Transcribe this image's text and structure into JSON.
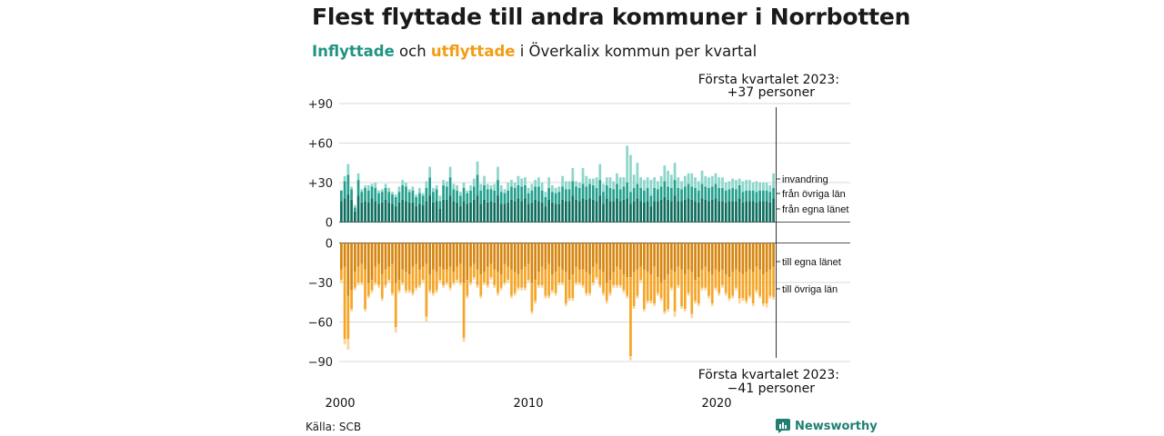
{
  "title": "Flest flyttade till andra kommuner i Norrbotten",
  "subtitle": {
    "in_word": "Inflyttade",
    "mid": " och ",
    "out_word": "utflyttade",
    "rest": " i Överkalix kommun per kvartal"
  },
  "source": "Källa: SCB",
  "brand": "Newsworthy",
  "colors": {
    "in_dark": "#0e6e5e",
    "in_mid": "#22a08d",
    "in_light": "#8ad6cb",
    "out_dark": "#d6850f",
    "out_mid": "#f5a526",
    "out_light": "#fbd59a",
    "grid": "#d9d9d9",
    "brand": "#1f7f73"
  },
  "chart_data": {
    "type": "bar",
    "stacked": true,
    "x_range": [
      "2000 Q1",
      "2023 Q1"
    ],
    "x_ticks": [
      "2000",
      "2010",
      "2020"
    ],
    "top_panel": {
      "y_ticks": [
        "+90",
        "+60",
        "+30",
        "0"
      ],
      "ylim": [
        0,
        90
      ],
      "series_labels": [
        "invandring",
        "från övriga län",
        "från egna länet"
      ],
      "series": {
        "fran_egna_lanet": [
          16,
          18,
          21,
          17,
          8,
          20,
          15,
          16,
          15,
          18,
          16,
          14,
          15,
          17,
          15,
          14,
          12,
          15,
          17,
          16,
          15,
          15,
          12,
          14,
          13,
          16,
          20,
          15,
          16,
          10,
          17,
          17,
          20,
          16,
          15,
          12,
          16,
          14,
          15,
          17,
          20,
          14,
          17,
          15,
          16,
          15,
          20,
          14,
          14,
          15,
          17,
          16,
          18,
          16,
          18,
          14,
          15,
          17,
          16,
          15,
          12,
          17,
          15,
          14,
          14,
          17,
          16,
          16,
          20,
          17,
          16,
          18,
          17,
          18,
          17,
          16,
          20,
          14,
          18,
          16,
          16,
          18,
          16,
          17,
          18,
          14,
          16,
          18,
          16,
          15,
          16,
          12,
          16,
          16,
          17,
          19,
          17,
          16,
          20,
          16,
          16,
          17,
          18,
          17,
          16,
          15,
          18,
          17,
          16,
          17,
          18,
          16,
          16,
          15,
          16,
          16,
          16,
          18,
          15,
          16,
          16,
          16,
          15,
          16,
          16,
          16,
          15,
          18
        ],
        "fran_ovriga_lan": [
          8,
          13,
          15,
          8,
          3,
          12,
          8,
          10,
          9,
          9,
          10,
          8,
          8,
          9,
          8,
          7,
          7,
          8,
          11,
          11,
          8,
          9,
          7,
          8,
          7,
          10,
          14,
          8,
          9,
          6,
          11,
          10,
          14,
          9,
          9,
          8,
          10,
          8,
          9,
          10,
          16,
          10,
          11,
          10,
          9,
          9,
          12,
          9,
          8,
          9,
          10,
          10,
          10,
          11,
          10,
          8,
          9,
          10,
          11,
          9,
          7,
          9,
          8,
          8,
          9,
          10,
          9,
          9,
          11,
          10,
          10,
          11,
          10,
          11,
          11,
          10,
          12,
          9,
          10,
          10,
          9,
          11,
          9,
          10,
          12,
          9,
          10,
          11,
          10,
          9,
          10,
          8,
          10,
          9,
          10,
          12,
          10,
          10,
          12,
          10,
          9,
          10,
          11,
          10,
          10,
          9,
          11,
          10,
          10,
          10,
          11,
          10,
          10,
          9,
          9,
          10,
          9,
          10,
          8,
          8,
          8,
          8,
          8,
          8,
          8,
          8,
          8,
          8
        ],
        "invandring": [
          0,
          4,
          8,
          2,
          2,
          5,
          2,
          2,
          4,
          2,
          4,
          2,
          2,
          3,
          3,
          2,
          2,
          4,
          4,
          3,
          2,
          3,
          2,
          4,
          2,
          5,
          8,
          3,
          3,
          4,
          4,
          4,
          8,
          4,
          4,
          3,
          4,
          2,
          4,
          6,
          10,
          5,
          7,
          4,
          3,
          5,
          10,
          5,
          3,
          6,
          5,
          4,
          7,
          6,
          6,
          4,
          5,
          5,
          7,
          6,
          4,
          8,
          5,
          4,
          4,
          8,
          6,
          6,
          10,
          4,
          4,
          12,
          8,
          4,
          5,
          8,
          12,
          6,
          6,
          8,
          6,
          8,
          9,
          7,
          28,
          28,
          10,
          16,
          8,
          8,
          8,
          12,
          8,
          6,
          8,
          12,
          12,
          10,
          13,
          8,
          6,
          8,
          8,
          10,
          8,
          7,
          10,
          8,
          8,
          8,
          8,
          8,
          8,
          6,
          6,
          7,
          7,
          5,
          8,
          8,
          8,
          6,
          8,
          6,
          6,
          6,
          5,
          11
        ]
      }
    },
    "bottom_panel": {
      "y_ticks": [
        "0",
        "−30",
        "−60",
        "−90"
      ],
      "ylim": [
        -90,
        0
      ],
      "series_labels": [
        "till egna länet",
        "till övriga län"
      ],
      "series": {
        "till_egna_lanet": [
          -20,
          -18,
          -40,
          -36,
          -22,
          -18,
          -16,
          -20,
          -30,
          -28,
          -18,
          -16,
          -24,
          -20,
          -18,
          -16,
          -30,
          -28,
          -20,
          -22,
          -24,
          -18,
          -16,
          -20,
          -18,
          -16,
          -24,
          -20,
          -22,
          -18,
          -20,
          -20,
          -18,
          -22,
          -18,
          -16,
          -30,
          -28,
          -18,
          -16,
          -20,
          -24,
          -22,
          -18,
          -16,
          -20,
          -22,
          -24,
          -16,
          -18,
          -20,
          -22,
          -24,
          -20,
          -18,
          -16,
          -30,
          -28,
          -22,
          -18,
          -20,
          -16,
          -24,
          -22,
          -18,
          -20,
          -22,
          -28,
          -24,
          -18,
          -20,
          -20,
          -22,
          -24,
          -18,
          -16,
          -20,
          -22,
          -30,
          -28,
          -22,
          -18,
          -20,
          -24,
          -26,
          -26,
          -22,
          -20,
          -18,
          -20,
          -22,
          -24,
          -18,
          -26,
          -30,
          -28,
          -24,
          -20,
          -22,
          -18,
          -20,
          -24,
          -20,
          -22,
          -28,
          -26,
          -20,
          -18,
          -22,
          -24,
          -20,
          -22,
          -20,
          -24,
          -26,
          -22,
          -20,
          -22,
          -24,
          -22,
          -20,
          -22,
          -18,
          -20,
          -24,
          -22,
          -20,
          -18
        ],
        "till_ovriga_lan": [
          -8,
          -55,
          -33,
          -14,
          -12,
          -12,
          -14,
          -30,
          -10,
          -8,
          -12,
          -16,
          -18,
          -12,
          -10,
          -22,
          -34,
          -8,
          -10,
          -14,
          -12,
          -20,
          -18,
          -12,
          -10,
          -40,
          -12,
          -18,
          -14,
          -10,
          -12,
          -10,
          -16,
          -8,
          -10,
          -14,
          -42,
          -12,
          -12,
          -10,
          -12,
          -16,
          -8,
          -14,
          -10,
          -12,
          -16,
          -10,
          -14,
          -10,
          -20,
          -16,
          -10,
          -14,
          -16,
          -12,
          -22,
          -16,
          -10,
          -14,
          -20,
          -24,
          -12,
          -16,
          -12,
          -10,
          -24,
          -14,
          -18,
          -12,
          -10,
          -12,
          -16,
          -14,
          -12,
          -10,
          -12,
          -16,
          -14,
          -10,
          -10,
          -14,
          -12,
          -12,
          -14,
          -60,
          -26,
          -20,
          -10,
          -30,
          -22,
          -20,
          -28,
          -12,
          -12,
          -24,
          -26,
          -14,
          -30,
          -14,
          -28,
          -26,
          -18,
          -32,
          -16,
          -20,
          -14,
          -16,
          -18,
          -22,
          -14,
          -16,
          -12,
          -14,
          -16,
          -18,
          -14,
          -20,
          -18,
          -22,
          -20,
          -24,
          -18,
          -20,
          -22,
          -24,
          -20,
          -23
        ],
        "light_overlay": [
          -2,
          -4,
          -8,
          -2,
          -2,
          -2,
          -2,
          -2,
          -2,
          -2,
          -2,
          -2,
          -2,
          -2,
          -2,
          -2,
          -4,
          -2,
          -2,
          -2,
          -2,
          -2,
          -2,
          -2,
          -2,
          -4,
          -2,
          -2,
          -2,
          -2,
          -2,
          -2,
          -2,
          -2,
          -2,
          -2,
          -3,
          -2,
          -2,
          -2,
          -2,
          -2,
          -2,
          -2,
          -2,
          -2,
          -2,
          -2,
          -2,
          -2,
          -2,
          -2,
          -2,
          -2,
          -2,
          -2,
          -2,
          -2,
          -2,
          -2,
          -2,
          -2,
          -2,
          -2,
          -2,
          -2,
          -2,
          -2,
          -2,
          -2,
          -2,
          -2,
          -2,
          -2,
          -2,
          -2,
          -2,
          -2,
          -2,
          -2,
          -2,
          -2,
          -2,
          -2,
          -2,
          -3,
          -2,
          -2,
          -2,
          -2,
          -2,
          -2,
          -2,
          -2,
          -2,
          -2,
          -2,
          -2,
          -4,
          -2,
          -2,
          -2,
          -2,
          -3,
          -2,
          -2,
          -2,
          -2,
          -2,
          -2,
          -2,
          -2,
          -2,
          -2,
          -2,
          -2,
          -2,
          -4,
          -2,
          -2,
          -2,
          -2,
          -2,
          -2,
          -2,
          -3,
          -2,
          -2
        ]
      }
    },
    "annotations": {
      "top": "Första kvartalet 2023:\n+37 personer",
      "bottom": "Första kvartalet 2023:\n−41 personer"
    }
  }
}
